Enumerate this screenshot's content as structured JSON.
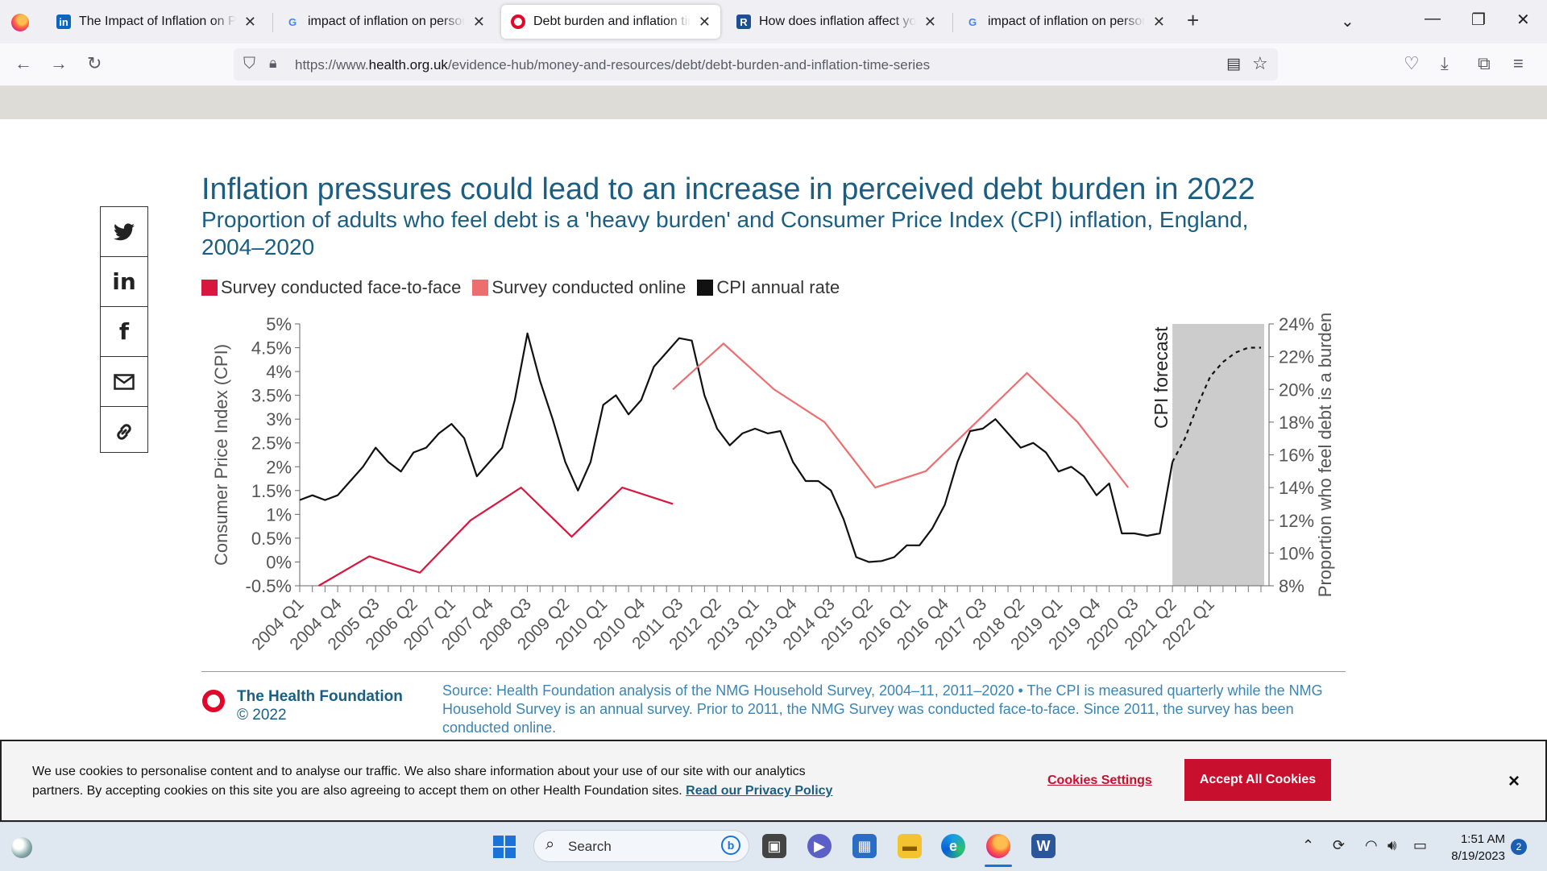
{
  "browser": {
    "tabs": [
      {
        "title": "The Impact of Inflation on Perso",
        "favicon": "linkedin-icon"
      },
      {
        "title": "impact of inflation on personal",
        "favicon": "google-icon"
      },
      {
        "title": "Debt burden and inflation time",
        "favicon": "health-foundation-icon"
      },
      {
        "title": "How does inflation affect your c",
        "favicon": "bank-icon"
      },
      {
        "title": "impact of inflation on personal",
        "favicon": "google-icon"
      }
    ],
    "url_prefix": "https://www.",
    "url_host": "health.org.uk",
    "url_path": "/evidence-hub/money-and-resources/debt/debt-burden-and-inflation-time-series"
  },
  "share": [
    "twitter-icon",
    "linkedin-icon",
    "facebook-icon",
    "email-icon",
    "link-icon"
  ],
  "chart_data": {
    "type": "line",
    "title": "Inflation pressures could lead to an increase in perceived debt burden in 2022",
    "subtitle": "Proportion of adults who feel debt is a 'heavy burden' and Consumer Price Index (CPI) inflation, England, 2004–2020",
    "ylabel_left": "Consumer Price Index (CPI)",
    "ylabel_right": "Proportion who feel debt is a burden",
    "ylim_left": [
      -0.5,
      5
    ],
    "ylim_right": [
      8,
      24
    ],
    "left_ticks": [
      "5%",
      "4.5%",
      "4%",
      "3.5%",
      "3%",
      "2.5%",
      "2%",
      "1.5%",
      "1%",
      "0.5%",
      "0%",
      "-0.5%"
    ],
    "right_ticks": [
      "24%",
      "22%",
      "20%",
      "18%",
      "16%",
      "14%",
      "12%",
      "10%",
      "8%"
    ],
    "x_tick_labels": [
      "2004 Q1",
      "2004 Q4",
      "2005 Q3",
      "2006 Q2",
      "2007 Q1",
      "2007 Q4",
      "2008 Q3",
      "2009 Q2",
      "2010 Q1",
      "2010 Q4",
      "2011 Q3",
      "2012 Q2",
      "2013 Q1",
      "2013 Q4",
      "2014 Q3",
      "2015 Q2",
      "2016 Q1",
      "2016 Q4",
      "2017 Q3",
      "2018 Q2",
      "2019 Q1",
      "2019 Q4",
      "2020 Q3",
      "2021 Q2",
      "2022 Q1"
    ],
    "annotation": "CPI forecast",
    "legend": [
      "Survey conducted face-to-face",
      "Survey conducted online",
      "CPI annual rate"
    ],
    "colors": {
      "face_to_face": "#d8173f",
      "online": "#ee6e70",
      "cpi": "#111111",
      "forecast_band": "#cccccc"
    },
    "cpi_quarterly": [
      1.3,
      1.4,
      1.3,
      1.4,
      1.7,
      2.0,
      2.4,
      2.1,
      1.9,
      2.3,
      2.4,
      2.7,
      2.9,
      2.6,
      1.8,
      2.1,
      2.4,
      3.4,
      4.8,
      3.8,
      3.0,
      2.1,
      1.5,
      2.1,
      3.3,
      3.5,
      3.1,
      3.4,
      4.1,
      4.4,
      4.7,
      4.65,
      3.5,
      2.8,
      2.45,
      2.7,
      2.8,
      2.7,
      2.75,
      2.1,
      1.7,
      1.7,
      1.5,
      0.9,
      0.1,
      0.0,
      0.02,
      0.1,
      0.35,
      0.35,
      0.7,
      1.2,
      2.1,
      2.75,
      2.8,
      3.0,
      2.7,
      2.4,
      2.5,
      2.3,
      1.9,
      2.0,
      1.8,
      1.4,
      1.65,
      0.6,
      0.6,
      0.55,
      0.6,
      2.1
    ],
    "cpi_forecast_quarterly": [
      2.1,
      2.6,
      3.3,
      3.9,
      4.2,
      4.4,
      4.5,
      4.5
    ],
    "survey_face_to_face": {
      "years": [
        2004,
        2005,
        2006,
        2007,
        2008,
        2009,
        2010,
        2011
      ],
      "values": [
        8.0,
        9.8,
        8.8,
        12.0,
        14.0,
        11.0,
        14.0,
        13.0
      ]
    },
    "survey_online": {
      "years": [
        2011,
        2012,
        2013,
        2014,
        2015,
        2016,
        2017,
        2018,
        2019,
        2020
      ],
      "values": [
        20.0,
        22.8,
        20.0,
        18.0,
        14.0,
        15.0,
        18.0,
        21.0,
        18.0,
        14.0
      ]
    }
  },
  "footer": {
    "org": "The Health Foundation",
    "copyright": "© 2022",
    "source": "Source: Health Foundation analysis of the NMG Household Survey, 2004–11, 2011–2020 • The CPI is measured quarterly while the NMG Household Survey is an annual survey. Prior to 2011, the NMG Survey was conducted face-to-face. Since 2011, the survey has been conducted online."
  },
  "cookie": {
    "text": "We use cookies to personalise content and to analyse our traffic. We also share information about your use of our site with our analytics partners. By accepting cookies on this site you are also agreeing to accept them on other Health Foundation sites.",
    "privacy_link": "Read our Privacy Policy",
    "settings_label": "Cookies Settings",
    "accept_label": "Accept All Cookies",
    "close_label": "×"
  },
  "taskbar": {
    "search_placeholder": "Search",
    "time": "1:51 AM",
    "date": "8/19/2023",
    "notification_count": "2"
  }
}
